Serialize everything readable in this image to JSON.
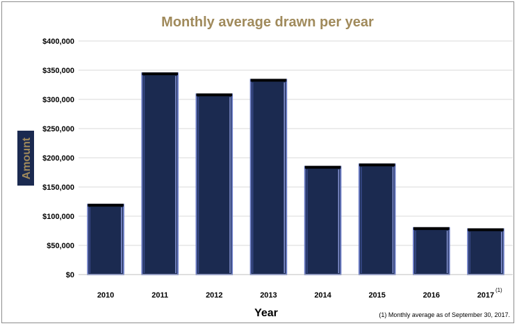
{
  "chart_data": {
    "type": "bar",
    "title": "Monthly average drawn per year",
    "xlabel": "Year",
    "ylabel": "Amount",
    "categories": [
      "2010",
      "2011",
      "2012",
      "2013",
      "2014",
      "2015",
      "2016",
      "2017"
    ],
    "category_superscripts": [
      "",
      "",
      "",
      "",
      "",
      "",
      "",
      "(1)"
    ],
    "values": [
      120000,
      345000,
      309000,
      334000,
      185000,
      189000,
      80000,
      78000
    ],
    "ylim": [
      0,
      400000
    ],
    "yticks": [
      0,
      50000,
      100000,
      150000,
      200000,
      250000,
      300000,
      350000,
      400000
    ],
    "ytick_labels": [
      "$0",
      "$50,000",
      "$100,000",
      "$150,000",
      "$200,000",
      "$250,000",
      "$300,000",
      "$350,000",
      "$400,000"
    ],
    "grid": true,
    "legend": "none",
    "footnote": "(1) Monthly average as of September 30, 2017.",
    "colors": {
      "bar_fill": "#1b2a50",
      "bar_edge": "#6a7bc4",
      "bar_top": "#000000",
      "title": "#a08a5b",
      "ylabel_bg": "#1b2a50",
      "ylabel_text": "#a08a5b",
      "grid": "#d9d9d9"
    }
  }
}
